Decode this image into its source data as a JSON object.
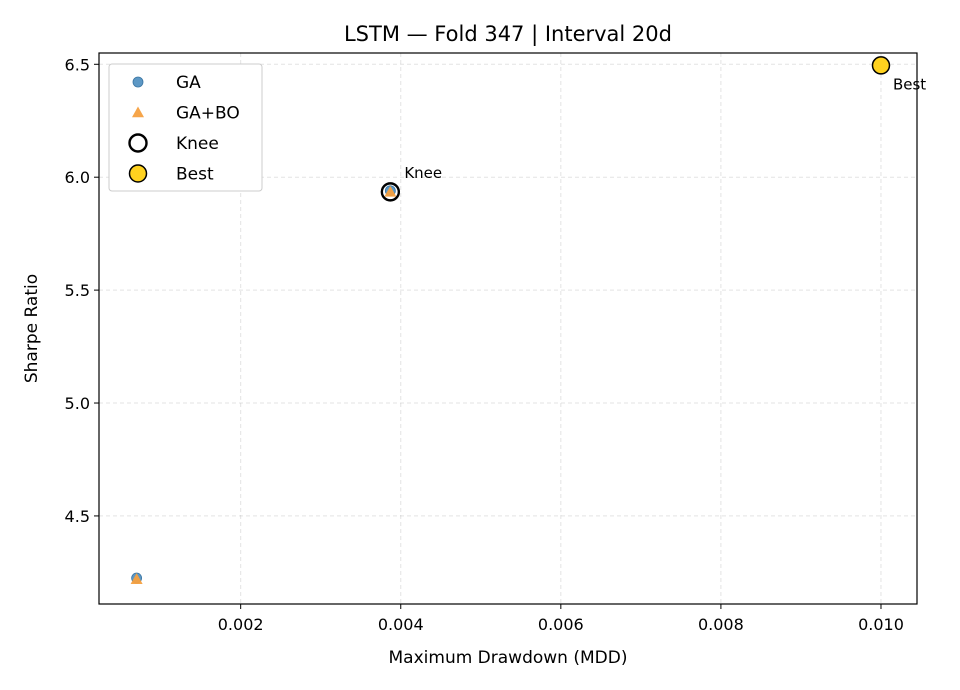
{
  "chart_data": {
    "type": "scatter",
    "title": "LSTM — Fold 347 | Interval 20d",
    "xlabel": "Maximum Drawdown (MDD)",
    "ylabel": "Sharpe Ratio",
    "xlim": [
      0.00023,
      0.01045
    ],
    "ylim": [
      4.11,
      6.55
    ],
    "xticks": [
      0.002,
      0.004,
      0.006,
      0.008,
      0.01
    ],
    "xtick_labels": [
      "0.002",
      "0.004",
      "0.006",
      "0.008",
      "0.010"
    ],
    "yticks": [
      4.5,
      5.0,
      5.5,
      6.0,
      6.5
    ],
    "ytick_labels": [
      "4.5",
      "5.0",
      "5.5",
      "6.0",
      "6.5"
    ],
    "grid": true,
    "legend_position": "top-left",
    "series": [
      {
        "name": "GA",
        "marker": "circle",
        "color": "#4b8dbf",
        "points": [
          {
            "x": 0.0007,
            "y": 4.225
          },
          {
            "x": 0.00387,
            "y": 5.94
          }
        ]
      },
      {
        "name": "GA+BO",
        "marker": "triangle",
        "color": "#f5a040",
        "points": [
          {
            "x": 0.0007,
            "y": 4.22
          },
          {
            "x": 0.00387,
            "y": 5.935
          }
        ]
      },
      {
        "name": "Knee",
        "marker": "hollow-circle",
        "color": "#000000",
        "points": [
          {
            "x": 0.00387,
            "y": 5.935
          }
        ]
      },
      {
        "name": "Best",
        "marker": "filled-circle",
        "color": "#ffd21f",
        "points": [
          {
            "x": 0.01,
            "y": 6.495
          }
        ]
      }
    ],
    "annotations": [
      {
        "text": "Knee",
        "x": 0.00387,
        "y": 5.935
      },
      {
        "text": "Best",
        "x": 0.01,
        "y": 6.495
      }
    ]
  }
}
